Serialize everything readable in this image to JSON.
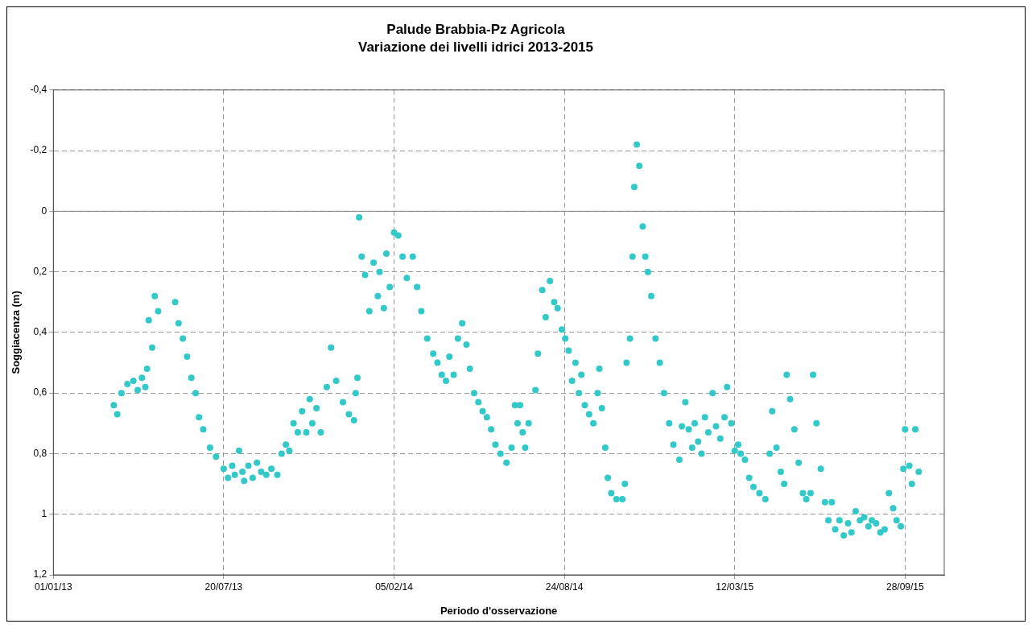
{
  "chart_data": {
    "type": "scatter",
    "title": "Palude Brabbia-Pz Agricola",
    "subtitle": "Variazione dei livelli idrici 2013-2015",
    "xlabel": "Periodo d'osservazione",
    "ylabel": "Soggiacenza (m)",
    "xlim": [
      "2013-01-01",
      "2015-11-13"
    ],
    "xticks": [
      {
        "value": "2013-01-01",
        "label": "01/01/13"
      },
      {
        "value": "2013-07-20",
        "label": "20/07/13"
      },
      {
        "value": "2014-02-05",
        "label": "05/02/14"
      },
      {
        "value": "2014-08-24",
        "label": "24/08/14"
      },
      {
        "value": "2015-03-12",
        "label": "12/03/15"
      },
      {
        "value": "2015-09-28",
        "label": "28/09/15"
      }
    ],
    "ylim": [
      1.2,
      -0.4
    ],
    "yticks": [
      {
        "value": -0.4,
        "label": "-0,4"
      },
      {
        "value": -0.2,
        "label": "-0,2"
      },
      {
        "value": 0,
        "label": "0"
      },
      {
        "value": 0.2,
        "label": "0,2"
      },
      {
        "value": 0.4,
        "label": "0,4"
      },
      {
        "value": 0.6,
        "label": "0,6"
      },
      {
        "value": 0.8,
        "label": "0,8"
      },
      {
        "value": 1,
        "label": "1"
      },
      {
        "value": 1.2,
        "label": "1,2"
      }
    ],
    "grid": true,
    "legend": false,
    "marker": "circle",
    "ref_lines": [
      {
        "axis": "y",
        "value": 0,
        "color": "#808080",
        "line_style": "solid"
      }
    ],
    "x": [
      "2013-03-13",
      "2013-03-17",
      "2013-03-22",
      "2013-03-29",
      "2013-04-05",
      "2013-04-10",
      "2013-04-15",
      "2013-04-19",
      "2013-04-21",
      "2013-04-23",
      "2013-04-27",
      "2013-04-30",
      "2013-05-04",
      "2013-05-24",
      "2013-05-28",
      "2013-06-02",
      "2013-06-07",
      "2013-06-12",
      "2013-06-17",
      "2013-06-21",
      "2013-06-26",
      "2013-07-04",
      "2013-07-11",
      "2013-07-20",
      "2013-07-25",
      "2013-07-30",
      "2013-08-02",
      "2013-08-07",
      "2013-08-11",
      "2013-08-13",
      "2013-08-18",
      "2013-08-23",
      "2013-08-28",
      "2013-09-02",
      "2013-09-08",
      "2013-09-14",
      "2013-09-21",
      "2013-09-26",
      "2013-10-01",
      "2013-10-05",
      "2013-10-10",
      "2013-10-15",
      "2013-10-20",
      "2013-10-25",
      "2013-10-29",
      "2013-11-01",
      "2013-11-06",
      "2013-11-11",
      "2013-11-18",
      "2013-11-23",
      "2013-11-29",
      "2013-12-07",
      "2013-12-14",
      "2013-12-20",
      "2013-12-22",
      "2013-12-24",
      "2013-12-26",
      "2013-12-29",
      "2014-01-02",
      "2014-01-07",
      "2014-01-12",
      "2014-01-17",
      "2014-01-19",
      "2014-01-24",
      "2014-01-27",
      "2014-01-31",
      "2014-02-05",
      "2014-02-10",
      "2014-02-15",
      "2014-02-20",
      "2014-02-27",
      "2014-03-04",
      "2014-03-09",
      "2014-03-16",
      "2014-03-23",
      "2014-03-28",
      "2014-04-02",
      "2014-04-07",
      "2014-04-11",
      "2014-04-16",
      "2014-04-21",
      "2014-04-26",
      "2014-05-01",
      "2014-05-05",
      "2014-05-10",
      "2014-05-15",
      "2014-05-20",
      "2014-05-25",
      "2014-05-30",
      "2014-06-04",
      "2014-06-10",
      "2014-06-17",
      "2014-06-23",
      "2014-06-27",
      "2014-06-30",
      "2014-07-03",
      "2014-07-06",
      "2014-07-09",
      "2014-07-13",
      "2014-07-21",
      "2014-07-24",
      "2014-07-29",
      "2014-08-02",
      "2014-08-07",
      "2014-08-12",
      "2014-08-16",
      "2014-08-21",
      "2014-08-25",
      "2014-08-29",
      "2014-09-02",
      "2014-09-06",
      "2014-09-10",
      "2014-09-13",
      "2014-09-17",
      "2014-09-22",
      "2014-09-27",
      "2014-10-02",
      "2014-10-04",
      "2014-10-07",
      "2014-10-11",
      "2014-10-14",
      "2014-10-18",
      "2014-10-24",
      "2014-10-31",
      "2014-11-03",
      "2014-11-05",
      "2014-11-09",
      "2014-11-12",
      "2014-11-14",
      "2014-11-17",
      "2014-11-20",
      "2014-11-24",
      "2014-11-27",
      "2014-11-30",
      "2014-12-04",
      "2014-12-09",
      "2014-12-14",
      "2014-12-19",
      "2014-12-25",
      "2014-12-30",
      "2015-01-06",
      "2015-01-09",
      "2015-01-13",
      "2015-01-17",
      "2015-01-21",
      "2015-01-24",
      "2015-01-28",
      "2015-02-01",
      "2015-02-05",
      "2015-02-09",
      "2015-02-14",
      "2015-02-18",
      "2015-02-23",
      "2015-02-28",
      "2015-03-03",
      "2015-03-08",
      "2015-03-12",
      "2015-03-16",
      "2015-03-19",
      "2015-03-24",
      "2015-03-29",
      "2015-04-03",
      "2015-04-10",
      "2015-04-17",
      "2015-04-22",
      "2015-04-25",
      "2015-04-30",
      "2015-05-05",
      "2015-05-09",
      "2015-05-12",
      "2015-05-16",
      "2015-05-21",
      "2015-05-26",
      "2015-05-31",
      "2015-06-04",
      "2015-06-09",
      "2015-06-12",
      "2015-06-16",
      "2015-06-21",
      "2015-06-26",
      "2015-06-30",
      "2015-07-04",
      "2015-07-08",
      "2015-07-13",
      "2015-07-18",
      "2015-07-23",
      "2015-07-27",
      "2015-08-01",
      "2015-08-06",
      "2015-08-11",
      "2015-08-16",
      "2015-08-20",
      "2015-08-25",
      "2015-08-30",
      "2015-09-04",
      "2015-09-09",
      "2015-09-14",
      "2015-09-18",
      "2015-09-23",
      "2015-09-26",
      "2015-09-28",
      "2015-10-03",
      "2015-10-06",
      "2015-10-10",
      "2015-10-14"
    ],
    "series": [
      {
        "color": "#33c9c9",
        "values": [
          0.64,
          0.67,
          0.6,
          0.57,
          0.56,
          0.59,
          0.55,
          0.58,
          0.52,
          0.36,
          0.45,
          0.28,
          0.33,
          0.3,
          0.37,
          0.42,
          0.48,
          0.55,
          0.6,
          0.68,
          0.72,
          0.78,
          0.81,
          0.85,
          0.88,
          0.84,
          0.87,
          0.79,
          0.86,
          0.89,
          0.84,
          0.88,
          0.83,
          0.86,
          0.87,
          0.85,
          0.87,
          0.8,
          0.77,
          0.79,
          0.7,
          0.73,
          0.66,
          0.73,
          0.62,
          0.7,
          0.65,
          0.73,
          0.58,
          0.45,
          0.56,
          0.63,
          0.67,
          0.69,
          0.6,
          0.55,
          0.02,
          0.15,
          0.21,
          0.33,
          0.17,
          0.28,
          0.2,
          0.32,
          0.14,
          0.25,
          0.07,
          0.08,
          0.15,
          0.22,
          0.15,
          0.25,
          0.33,
          0.42,
          0.47,
          0.5,
          0.54,
          0.56,
          0.48,
          0.54,
          0.42,
          0.37,
          0.44,
          0.52,
          0.6,
          0.63,
          0.66,
          0.68,
          0.72,
          0.77,
          0.8,
          0.83,
          0.78,
          0.64,
          0.7,
          0.64,
          0.73,
          0.78,
          0.7,
          0.59,
          0.47,
          0.26,
          0.35,
          0.23,
          0.3,
          0.32,
          0.39,
          0.42,
          0.46,
          0.56,
          0.5,
          0.6,
          0.54,
          0.64,
          0.67,
          0.7,
          0.6,
          0.52,
          0.65,
          0.78,
          0.88,
          0.93,
          0.95,
          0.95,
          0.9,
          0.5,
          0.42,
          0.15,
          -0.08,
          -0.22,
          -0.15,
          0.05,
          0.15,
          0.2,
          0.28,
          0.42,
          0.5,
          0.6,
          0.7,
          0.77,
          0.82,
          0.71,
          0.63,
          0.72,
          0.78,
          0.7,
          0.76,
          0.8,
          0.68,
          0.73,
          0.6,
          0.71,
          0.75,
          0.68,
          0.58,
          0.7,
          0.79,
          0.77,
          0.8,
          0.82,
          0.88,
          0.91,
          0.93,
          0.95,
          0.8,
          0.66,
          0.78,
          0.86,
          0.9,
          0.54,
          0.62,
          0.72,
          0.83,
          0.93,
          0.95,
          0.93,
          0.54,
          0.7,
          0.85,
          0.96,
          1.02,
          0.96,
          1.05,
          1.02,
          1.07,
          1.03,
          1.06,
          0.99,
          1.02,
          1.01,
          1.04,
          1.02,
          1.03,
          1.06,
          1.05,
          0.93,
          0.98,
          1.02,
          1.04,
          0.85,
          0.72,
          0.84,
          0.9,
          0.72,
          0.86
        ]
      }
    ]
  }
}
